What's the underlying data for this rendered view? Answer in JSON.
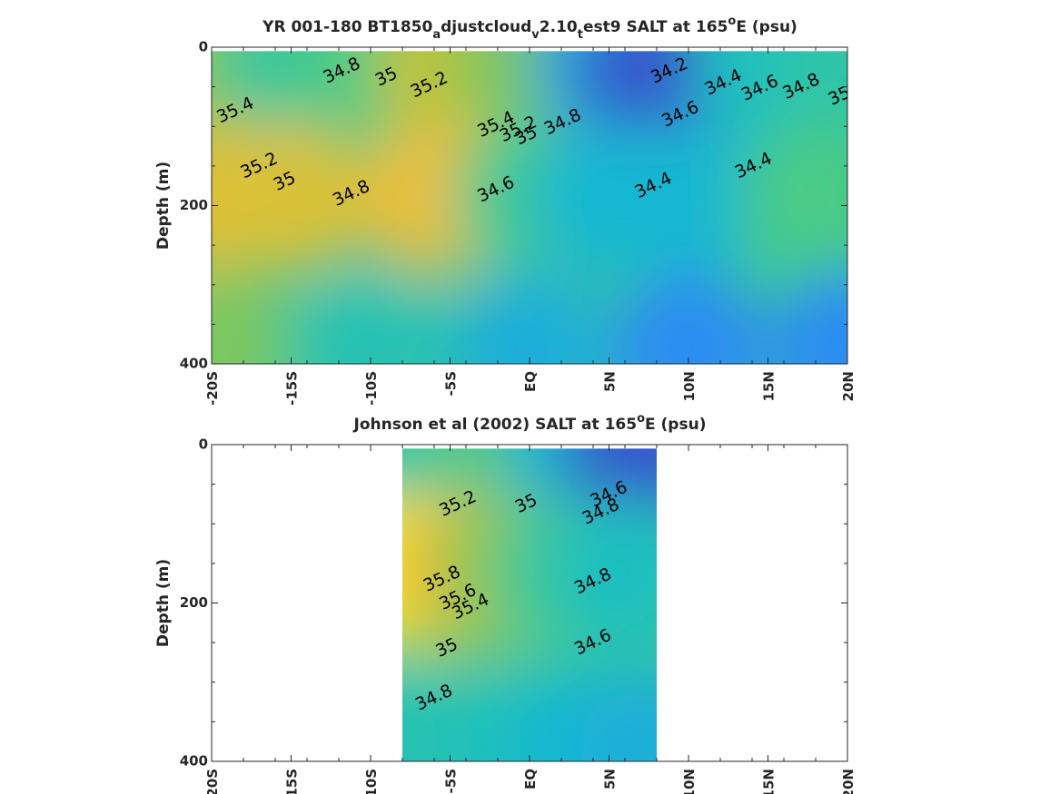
{
  "colors": {
    "colormap": [
      "#3e26a8",
      "#2e87f7",
      "#13bdce",
      "#48cb86",
      "#b8c334",
      "#fcbe3c",
      "#f9fb15"
    ],
    "contour_line": "#000000",
    "axis": "#262626"
  },
  "chart_data": [
    {
      "type": "heatmap",
      "subtype": "filled-contour",
      "title_parts": [
        {
          "text": "YR 001-180 BT1850",
          "sub": false
        },
        {
          "text": "a",
          "sub": true
        },
        {
          "text": "djustcloud",
          "sub": false
        },
        {
          "text": "v",
          "sub": true
        },
        {
          "text": "2.10",
          "sub": false
        },
        {
          "text": "t",
          "sub": true
        },
        {
          "text": "est9 SALT at 165",
          "sub": false
        },
        {
          "text": "o",
          "sup": true
        },
        {
          "text": "E (psu)",
          "sub": false
        }
      ],
      "ylabel": "Depth (m)",
      "xlabel": "",
      "xlim": [
        -20,
        20
      ],
      "ylim": [
        400,
        0
      ],
      "x_ticks": [
        -20,
        -15,
        -10,
        -5,
        0,
        5,
        10,
        15,
        20
      ],
      "x_ticklabels": [
        "-20S",
        "-15S",
        "-10S",
        "-5S",
        "EQ",
        "5N",
        "10N",
        "15N",
        "20N"
      ],
      "y_ticks": [
        0,
        200,
        400
      ],
      "y_ticklabels": [
        "0",
        "200",
        "400"
      ],
      "data_extent": {
        "x": [
          -20,
          20
        ],
        "depth": [
          5,
          400
        ]
      },
      "color_range": [
        34.0,
        35.9
      ],
      "salinity_samples": [
        {
          "x": -20,
          "depth": 20,
          "value": 35.15
        },
        {
          "x": -15,
          "depth": 20,
          "value": 34.85
        },
        {
          "x": -10,
          "depth": 20,
          "value": 34.95
        },
        {
          "x": -5,
          "depth": 20,
          "value": 35.3
        },
        {
          "x": 0,
          "depth": 20,
          "value": 35.1
        },
        {
          "x": 5,
          "depth": 20,
          "value": 34.5
        },
        {
          "x": 8,
          "depth": 40,
          "value": 34.15
        },
        {
          "x": 15,
          "depth": 20,
          "value": 34.7
        },
        {
          "x": 20,
          "depth": 20,
          "value": 34.8
        },
        {
          "x": -20,
          "depth": 190,
          "value": 35.45
        },
        {
          "x": -15,
          "depth": 190,
          "value": 35.42
        },
        {
          "x": -6,
          "depth": 190,
          "value": 35.5
        },
        {
          "x": 0,
          "depth": 190,
          "value": 34.9
        },
        {
          "x": 5,
          "depth": 190,
          "value": 34.6
        },
        {
          "x": 10,
          "depth": 190,
          "value": 34.6
        },
        {
          "x": 18,
          "depth": 190,
          "value": 34.95
        },
        {
          "x": -20,
          "depth": 380,
          "value": 35.1
        },
        {
          "x": -10,
          "depth": 380,
          "value": 34.75
        },
        {
          "x": 0,
          "depth": 380,
          "value": 34.55
        },
        {
          "x": 10,
          "depth": 380,
          "value": 34.35
        },
        {
          "x": 20,
          "depth": 380,
          "value": 34.35
        }
      ],
      "contour_labels": [
        {
          "text": "34.8",
          "x": -11.8,
          "depth": 30
        },
        {
          "text": "35",
          "x": -9,
          "depth": 38
        },
        {
          "text": "35.2",
          "x": -6.3,
          "depth": 48
        },
        {
          "text": "35.4",
          "x": -18.5,
          "depth": 80
        },
        {
          "text": "35.4",
          "x": -2.1,
          "depth": 98
        },
        {
          "text": "35.2",
          "x": -0.7,
          "depth": 104
        },
        {
          "text": "35",
          "x": -0.2,
          "depth": 112
        },
        {
          "text": "34.8",
          "x": 2.1,
          "depth": 95
        },
        {
          "text": "34.2",
          "x": 8.8,
          "depth": 30
        },
        {
          "text": "34.4",
          "x": 12.2,
          "depth": 45
        },
        {
          "text": "34.6",
          "x": 14.5,
          "depth": 52
        },
        {
          "text": "34.8",
          "x": 17.1,
          "depth": 50
        },
        {
          "text": "35",
          "x": 19.5,
          "depth": 62
        },
        {
          "text": "34.6",
          "x": 9.5,
          "depth": 85
        },
        {
          "text": "34.4",
          "x": 14.1,
          "depth": 150
        },
        {
          "text": "34.4",
          "x": 7.8,
          "depth": 175
        },
        {
          "text": "35.2",
          "x": -17,
          "depth": 150
        },
        {
          "text": "35",
          "x": -15.4,
          "depth": 170
        },
        {
          "text": "34.8",
          "x": -11.2,
          "depth": 185
        },
        {
          "text": "34.6",
          "x": -2.1,
          "depth": 180
        }
      ]
    },
    {
      "type": "heatmap",
      "subtype": "filled-contour",
      "title_parts": [
        {
          "text": "Johnson et al (2002) SALT at 165",
          "sub": false
        },
        {
          "text": "o",
          "sup": true
        },
        {
          "text": "E (psu)",
          "sub": false
        }
      ],
      "ylabel": "Depth (m)",
      "xlabel": "",
      "xlim": [
        -20,
        20
      ],
      "ylim": [
        400,
        0
      ],
      "x_ticks": [
        -20,
        -15,
        -10,
        -5,
        0,
        5,
        10,
        15,
        20
      ],
      "x_ticklabels": [
        "-20S",
        "-15S",
        "-10S",
        "-5S",
        "EQ",
        "5N",
        "10N",
        "15N",
        "20N"
      ],
      "y_ticks": [
        0,
        200,
        400
      ],
      "y_ticklabels": [
        "0",
        "200",
        "400"
      ],
      "data_extent": {
        "x": [
          -8,
          8
        ],
        "depth": [
          5,
          400
        ]
      },
      "color_range": [
        34.0,
        35.9
      ],
      "salinity_samples": [
        {
          "x": -8,
          "depth": 10,
          "value": 34.75
        },
        {
          "x": -4,
          "depth": 10,
          "value": 34.85
        },
        {
          "x": 0,
          "depth": 10,
          "value": 35.0
        },
        {
          "x": 3,
          "depth": 10,
          "value": 34.6
        },
        {
          "x": 7,
          "depth": 15,
          "value": 34.15
        },
        {
          "x": -8,
          "depth": 160,
          "value": 35.95
        },
        {
          "x": -5,
          "depth": 160,
          "value": 35.6
        },
        {
          "x": -2,
          "depth": 160,
          "value": 35.2
        },
        {
          "x": 2,
          "depth": 160,
          "value": 34.9
        },
        {
          "x": 6,
          "depth": 160,
          "value": 34.7
        },
        {
          "x": -8,
          "depth": 380,
          "value": 34.75
        },
        {
          "x": 0,
          "depth": 380,
          "value": 34.7
        },
        {
          "x": 4,
          "depth": 380,
          "value": 34.6
        },
        {
          "x": 8,
          "depth": 380,
          "value": 34.55
        }
      ],
      "contour_labels": [
        {
          "text": "35.2",
          "x": -4.5,
          "depth": 75
        },
        {
          "text": "35",
          "x": -0.2,
          "depth": 75
        },
        {
          "text": "34.6",
          "x": 5,
          "depth": 63
        },
        {
          "text": "34.8",
          "x": 4.5,
          "depth": 85
        },
        {
          "text": "35.8",
          "x": -5.5,
          "depth": 170
        },
        {
          "text": "35.6",
          "x": -4.5,
          "depth": 193
        },
        {
          "text": "35.4",
          "x": -3.7,
          "depth": 205
        },
        {
          "text": "35",
          "x": -5.2,
          "depth": 257
        },
        {
          "text": "34.8",
          "x": -6,
          "depth": 320
        },
        {
          "text": "34.8",
          "x": 4,
          "depth": 173
        },
        {
          "text": "34.6",
          "x": 4,
          "depth": 250
        }
      ]
    }
  ]
}
